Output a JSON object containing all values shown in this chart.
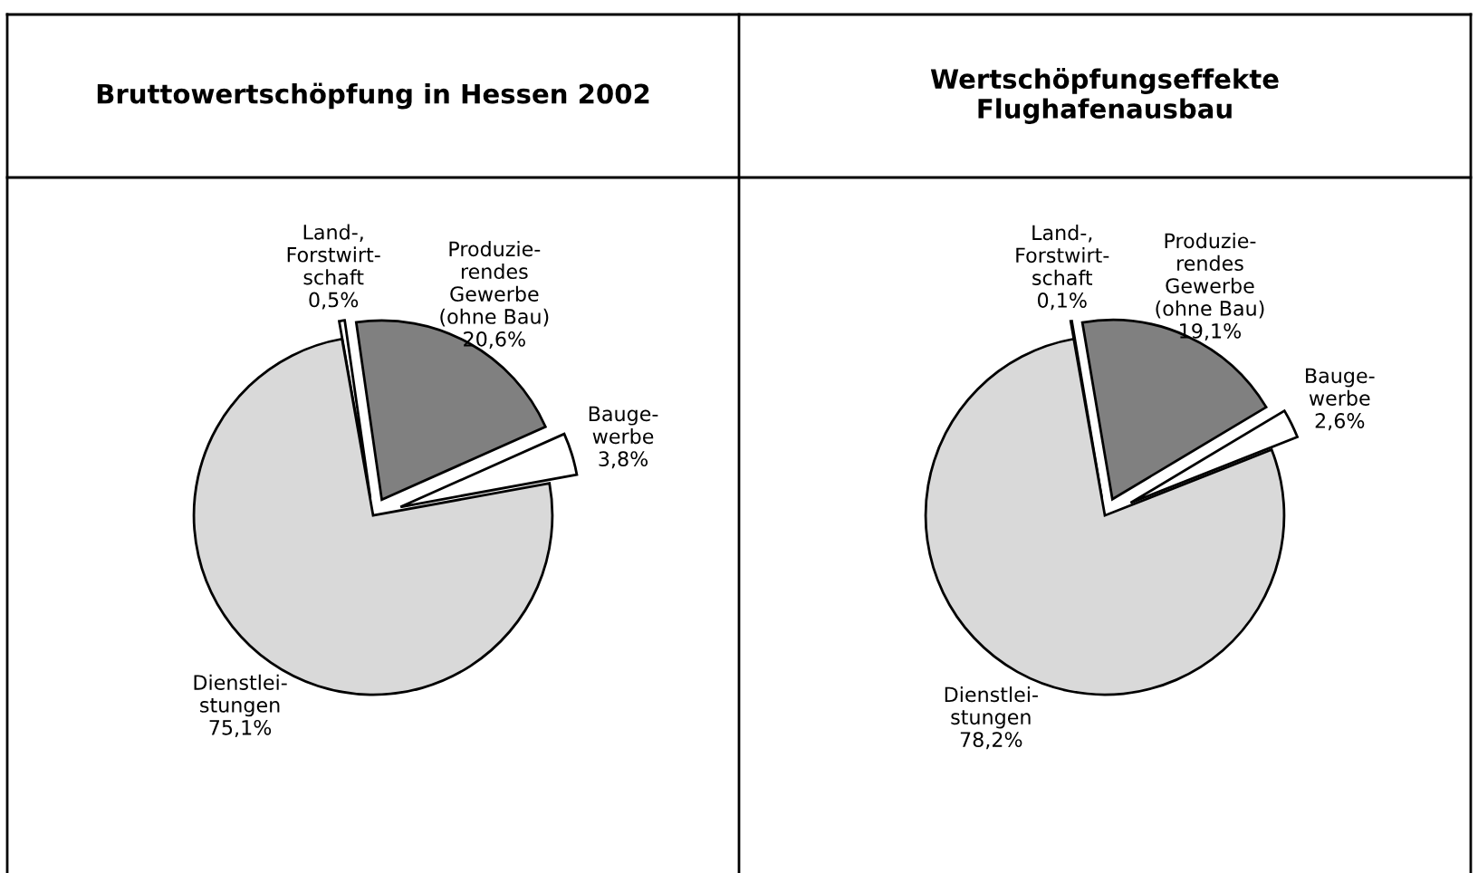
{
  "chart_data": [
    {
      "type": "pie",
      "title": "Bruttowertschöpfung in Hessen 2002",
      "categories": [
        "Land-,\nForstwirt-\nschaft",
        "Produzie-\nrendes\nGewerbe\n(ohne Bau)",
        "Bauge-\nwerbe",
        "Dienstlei-\nstungen"
      ],
      "values": [
        0.5,
        20.6,
        3.8,
        75.1
      ],
      "value_labels": [
        "0,5%",
        "20,6%",
        "3,8%",
        "75,1%"
      ],
      "colors": [
        "#ffffff",
        "#808080",
        "#ffffff",
        "#d9d9d9"
      ]
    },
    {
      "type": "pie",
      "title": "Wertschöpfungseffekte\nFlughafenausbau",
      "categories": [
        "Land-,\nForstwirt-\nschaft",
        "Produzie-\nrendes\nGewerbe\n(ohne Bau)",
        "Bauge-\nwerbe",
        "Dienstlei-\nstungen"
      ],
      "values": [
        0.1,
        19.1,
        2.6,
        78.2
      ],
      "value_labels": [
        "0,1%",
        "19,1%",
        "2,6%",
        "78,2%"
      ],
      "colors": [
        "#ffffff",
        "#808080",
        "#ffffff",
        "#d9d9d9"
      ]
    }
  ]
}
